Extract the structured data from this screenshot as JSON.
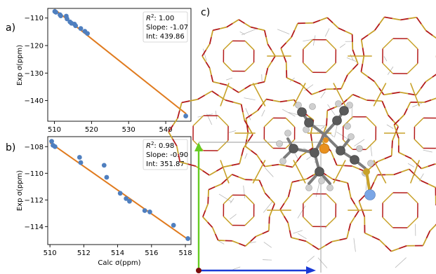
{
  "panels": {
    "a": "a)",
    "b": "b)",
    "c": "c)"
  },
  "colors": {
    "points": "#4f7fbf",
    "fit": "#e07b1f",
    "framework": "#b31b1b",
    "silicon": "#c8a22a",
    "carbon": "#5a5a5a",
    "hydrogen": "#cfcfcf",
    "phosphorus": "#e8901e",
    "boron": "#7aa6e6",
    "axis_green": "#66cc22",
    "axis_blue": "#1a3ad6"
  },
  "chart_data": [
    {
      "type": "scatter",
      "panel": "a)",
      "xlabel": "",
      "ylabel": "Exp σ(ppm)",
      "xlim": [
        508.2,
        546.8
      ],
      "ylim": [
        -147.5,
        -106.5
      ],
      "xticks": [
        510,
        520,
        530,
        540
      ],
      "yticks": [
        -110,
        -120,
        -130,
        -140
      ],
      "xtick_labels": [
        "510",
        "520",
        "530",
        "540"
      ],
      "ytick_labels": [
        "−110",
        "−120",
        "−130",
        "−140"
      ],
      "series": [
        {
          "x": [
            510.1,
            510.4,
            511.5,
            511.7,
            513.2,
            513.4,
            514.2,
            514.6,
            515.4,
            515.7,
            517.1,
            518.2,
            518.9
          ],
          "y": [
            -107.6,
            -107.9,
            -108.8,
            -109.2,
            -109.3,
            -110.3,
            -111.4,
            -111.9,
            -112.2,
            -112.8,
            -113.8,
            -114.8,
            -115.6
          ]
        }
      ],
      "fit": {
        "x": [
          510.0,
          545.5
        ],
        "y": [
          -106.8,
          -144.8
        ]
      },
      "stats": {
        "r2_prefix": "R",
        "r2_sup": "2",
        "r2_value": ": 1.00",
        "slope": "Slope: -1.07",
        "intercept": "Int: 439.86"
      },
      "extra_points": {
        "x": [
          545.4
        ],
        "y": [
          -145.6
        ]
      }
    },
    {
      "type": "scatter",
      "panel": "b)",
      "xlabel": "Calc σ(ppm)",
      "ylabel": "Exp σ(ppm)",
      "xlim": [
        509.87,
        518.33
      ],
      "ylim": [
        -115.35,
        -107.25
      ],
      "xticks": [
        510,
        512,
        514,
        516,
        518
      ],
      "yticks": [
        -108,
        -110,
        -112,
        -114
      ],
      "xtick_labels": [
        "510",
        "512",
        "514",
        "516",
        "518"
      ],
      "ytick_labels": [
        "−108",
        "−110",
        "−112",
        "−114"
      ],
      "series": [
        {
          "x": [
            510.1,
            510.18,
            510.3,
            511.75,
            511.82,
            513.2,
            513.35,
            514.15,
            514.5,
            514.7,
            515.6,
            515.9,
            517.3,
            518.15
          ],
          "y": [
            -107.6,
            -107.9,
            -108.0,
            -108.8,
            -109.2,
            -109.4,
            -110.3,
            -111.5,
            -111.9,
            -112.1,
            -112.8,
            -112.9,
            -113.9,
            -114.9
          ]
        }
      ],
      "fit": {
        "x": [
          510.0,
          518.2
        ],
        "y": [
          -107.7,
          -115.0
        ]
      },
      "stats": {
        "r2_prefix": "R",
        "r2_sup": "2",
        "r2_value": ": 0.98",
        "slope": "Slope: -0.90",
        "intercept": "Int: 351.87"
      }
    }
  ]
}
